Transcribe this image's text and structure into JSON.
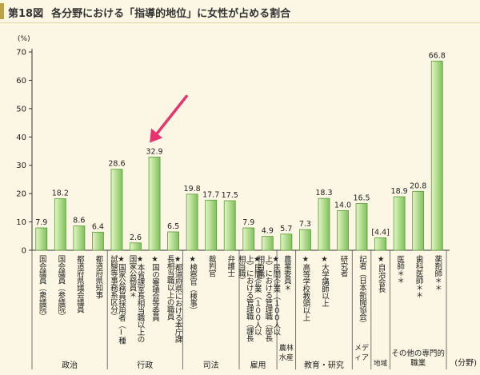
{
  "title": {
    "figure_number": "第18図",
    "text": "各分野における「指導的地位」に女性が占める割合"
  },
  "colors": {
    "bar_fill_light": "#e4f5c4",
    "bar_fill_dark": "#7ec25a",
    "bar_stroke": "#5a9a3c",
    "arrow": "#e8336e",
    "background": "#fbf7e4"
  },
  "chart_data": {
    "type": "bar",
    "y_unit": "(%)",
    "ylim": [
      0,
      70
    ],
    "yticks": [
      0,
      10,
      20,
      30,
      40,
      50,
      60,
      70
    ],
    "x_unit": "(分野)",
    "grid": false,
    "categories": [
      "国会議員（衆議院）",
      "国会議員（参議院）",
      "都道府県議会議員",
      "都道府県知事",
      "★国家公務員採用者（Ⅰ種試験等事務系区分）",
      "★本省課室長相当職以上の国家公務員＊",
      "★国の審議会等委員",
      "★都道府県における本庁課長相当職以上の職員",
      "★検察官（検事）",
      "裁判官",
      "弁護士",
      "★民間企業（１００人以上）における管理職（課長相当職）",
      "★民間企業（１００人以上）における管理職（部長相当職）",
      "農業委員＊",
      "★高等学校教頭以上",
      "★大学講師以上",
      "研究者",
      "記者（日本新聞協会）",
      "★自治会長",
      "医師＊＊",
      "歯科医師＊＊",
      "薬剤師＊＊"
    ],
    "values": [
      7.9,
      18.2,
      8.6,
      6.4,
      28.6,
      2.6,
      32.9,
      6.5,
      19.8,
      17.7,
      17.5,
      7.9,
      4.9,
      5.7,
      7.3,
      18.3,
      14.0,
      16.5,
      4.4,
      18.9,
      20.8,
      66.8
    ],
    "value_labels": [
      "7.9",
      "18.2",
      "8.6",
      "6.4",
      "28.6",
      "2.6",
      "32.9",
      "6.5",
      "19.8",
      "17.7",
      "17.5",
      "7.9",
      "4.9",
      "5.7",
      "7.3",
      "18.3",
      "14.0",
      "16.5",
      "[4.4]",
      "18.9",
      "20.8",
      "66.8"
    ],
    "highlighted_category": "★国の審議会等委員",
    "groups": [
      {
        "label": "政治",
        "count": 4
      },
      {
        "label": "行政",
        "count": 4
      },
      {
        "label": "司法",
        "count": 3
      },
      {
        "label": "雇用",
        "count": 2
      },
      {
        "label": "農林水産",
        "count": 1
      },
      {
        "label": "教育・研究",
        "count": 3
      },
      {
        "label": "メディア",
        "count": 1
      },
      {
        "label": "地域",
        "count": 1
      },
      {
        "label": "その他の専門的職業",
        "count": 3
      }
    ]
  }
}
